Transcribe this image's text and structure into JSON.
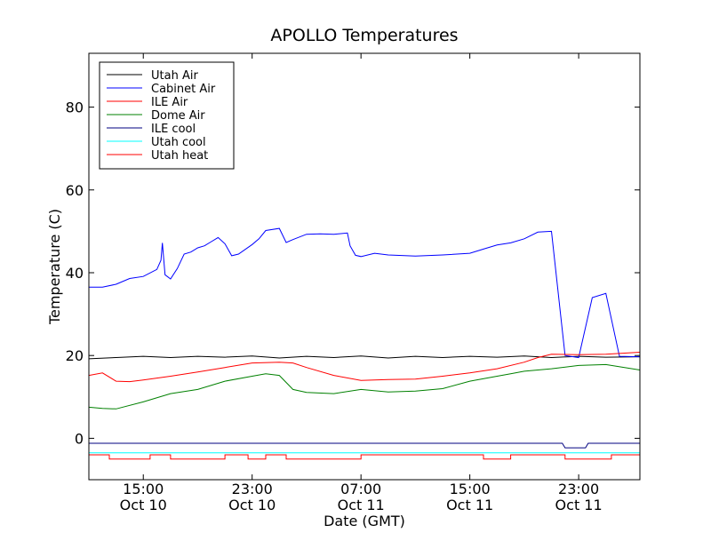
{
  "chart_data": {
    "type": "line",
    "title": "APOLLO Temperatures",
    "xlabel": "Date (GMT)",
    "ylabel": "Temperature (C)",
    "xlim": [
      0,
      40.5
    ],
    "ylim": [
      -10,
      93
    ],
    "x_unit": "hours from Oct 10 11:00 GMT",
    "x_ticks": [
      {
        "x": 4,
        "line1": "15:00",
        "line2": "Oct 10"
      },
      {
        "x": 12,
        "line1": "23:00",
        "line2": "Oct 10"
      },
      {
        "x": 20,
        "line1": "07:00",
        "line2": "Oct 11"
      },
      {
        "x": 28,
        "line1": "15:00",
        "line2": "Oct 11"
      },
      {
        "x": 36,
        "line1": "23:00",
        "line2": "Oct 11"
      }
    ],
    "y_ticks": [
      0,
      20,
      40,
      60,
      80
    ],
    "legend_position": "upper-left",
    "series": [
      {
        "name": "Utah Air",
        "color": "#000000",
        "x": [
          0,
          2,
          4,
          6,
          8,
          10,
          12,
          14,
          16,
          18,
          20,
          22,
          24,
          26,
          28,
          30,
          32,
          34,
          36,
          38,
          40.5
        ],
        "y": [
          19.2,
          19.5,
          19.8,
          19.5,
          19.8,
          19.6,
          19.9,
          19.4,
          19.8,
          19.5,
          19.9,
          19.4,
          19.8,
          19.5,
          19.8,
          19.6,
          19.9,
          19.5,
          19.8,
          19.6,
          19.7
        ]
      },
      {
        "name": "Cabinet Air",
        "color": "#0000ff",
        "x": [
          0,
          1,
          2,
          3,
          4,
          5,
          5.3,
          5.4,
          5.6,
          6,
          6.5,
          7,
          7.5,
          8,
          8.5,
          9,
          9.5,
          10,
          10.5,
          11,
          12,
          12.5,
          13,
          14,
          14.5,
          15,
          16,
          17,
          18,
          19,
          19.2,
          19.6,
          20,
          21,
          22,
          24,
          26,
          28,
          29,
          30,
          31,
          32,
          33,
          34,
          35,
          36,
          37,
          38,
          39,
          40.5
        ],
        "y": [
          36.5,
          36.5,
          37.2,
          38.6,
          39.1,
          40.8,
          43,
          47.2,
          39.5,
          38.5,
          41,
          44.5,
          45,
          46,
          46.5,
          47.5,
          48.5,
          47,
          44.1,
          44.5,
          46.8,
          48.2,
          50.2,
          50.7,
          47.3,
          48,
          49.3,
          49.4,
          49.3,
          49.6,
          46.5,
          44.2,
          43.9,
          44.7,
          44.3,
          44.0,
          44.3,
          44.7,
          45.7,
          46.7,
          47.2,
          48.2,
          49.8,
          50,
          20,
          19.5,
          34,
          35,
          19.8,
          19.7
        ]
      },
      {
        "name": "ILE Air",
        "color": "#ff0000",
        "x": [
          0,
          1,
          2,
          3,
          4,
          6,
          8,
          10,
          12,
          14,
          15,
          16,
          18,
          20,
          22,
          24,
          26,
          28,
          30,
          32,
          33,
          34,
          36,
          38,
          40.5
        ],
        "y": [
          15.2,
          15.8,
          13.8,
          13.7,
          14.1,
          15,
          16,
          17.1,
          18.2,
          18.4,
          18.2,
          17.1,
          15.2,
          14,
          14.2,
          14.3,
          15,
          15.8,
          16.8,
          18.4,
          19.5,
          20.3,
          20.2,
          20.3,
          20.8
        ]
      },
      {
        "name": "Dome Air",
        "color": "#008000",
        "x": [
          0,
          1,
          2,
          4,
          6,
          8,
          10,
          12,
          13,
          14,
          15,
          16,
          18,
          20,
          22,
          24,
          26,
          28,
          30,
          31,
          32,
          34,
          36,
          38,
          40.5
        ],
        "y": [
          7.5,
          7.2,
          7.1,
          8.8,
          10.8,
          11.8,
          13.8,
          15,
          15.6,
          15.2,
          11.8,
          11.1,
          10.8,
          11.8,
          11.2,
          11.4,
          12,
          13.8,
          15,
          15.6,
          16.2,
          16.8,
          17.6,
          17.8,
          16.5
        ]
      },
      {
        "name": "ILE cool",
        "color": "#000080",
        "x": [
          0,
          10,
          20,
          30,
          34.8,
          35,
          36.5,
          36.7,
          40.5
        ],
        "y": [
          -1.2,
          -1.2,
          -1.2,
          -1.2,
          -1.2,
          -2.3,
          -2.3,
          -1.2,
          -1.2
        ]
      },
      {
        "name": "Utah cool",
        "color": "#00ffff",
        "x": [
          0,
          40.5
        ],
        "y": [
          -3.5,
          -3.5
        ]
      },
      {
        "name": "Utah heat",
        "color": "#ff0000",
        "x": [
          0,
          1.5,
          1.5,
          4.5,
          4.5,
          6,
          6,
          10,
          10,
          11.7,
          11.7,
          13,
          13,
          14.5,
          14.5,
          20,
          20,
          29,
          29,
          31,
          31,
          35,
          35,
          38.4,
          38.4,
          40.5
        ],
        "y": [
          -4,
          -4,
          -5,
          -5,
          -4,
          -4,
          -5,
          -5,
          -4,
          -4,
          -5,
          -5,
          -4,
          -4,
          -5,
          -5,
          -4,
          -4,
          -5,
          -5,
          -4,
          -4,
          -5,
          -5,
          -4,
          -4
        ]
      }
    ]
  }
}
